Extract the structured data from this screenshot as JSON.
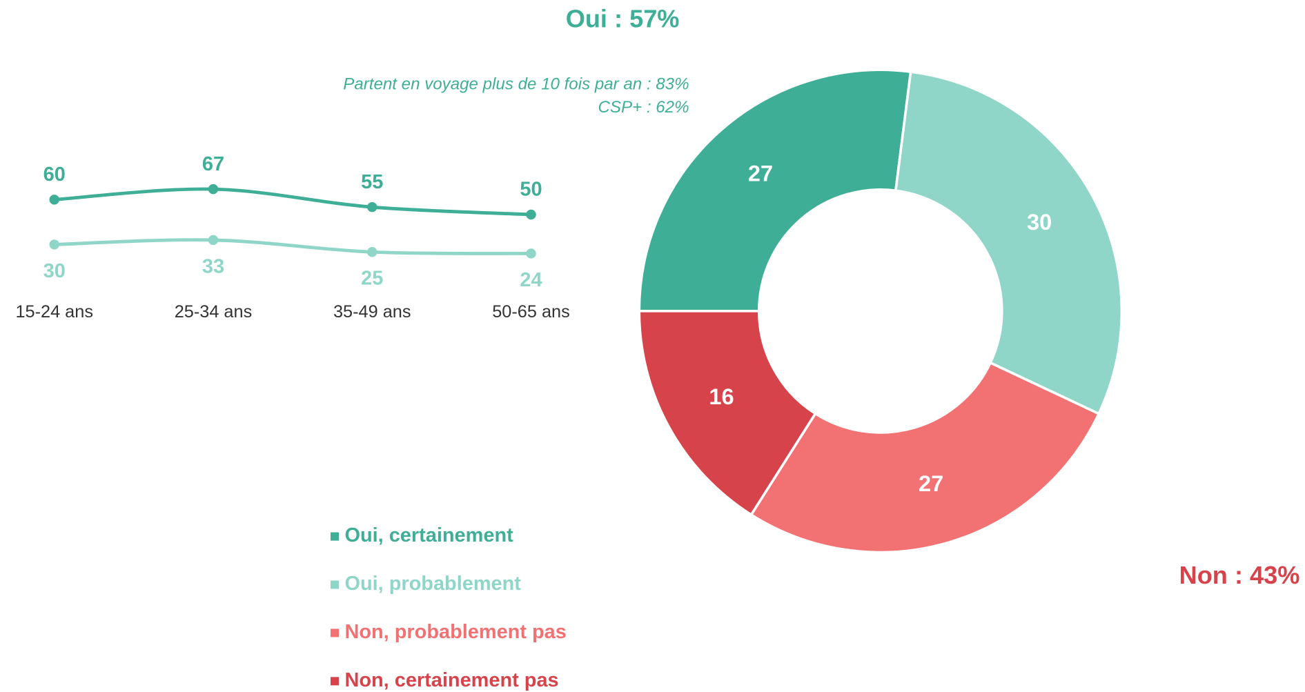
{
  "chart_data": [
    {
      "type": "donut",
      "categories": [
        "Oui, certainement",
        "Oui, probablement",
        "Non, probablement pas",
        "Non, certainement pas"
      ],
      "values": [
        27,
        30,
        27,
        16
      ],
      "colors": [
        "#3fae96",
        "#8fd6c8",
        "#f27274",
        "#d6434a"
      ],
      "annotations": [
        "Oui : 57%",
        "Partent en voyage plus de 10 fois par an : 83%",
        "CSP+ : 62%",
        "Non : 43%"
      ],
      "legend": "bottom-left"
    },
    {
      "type": "line",
      "categories": [
        "15-24 ans",
        "25-34 ans",
        "35-49 ans",
        "50-65 ans"
      ],
      "series": [
        {
          "color": "#3fae96",
          "values": [
            60,
            67,
            55,
            50
          ]
        },
        {
          "color": "#8fd6c8",
          "values": [
            30,
            33,
            25,
            24
          ]
        }
      ]
    }
  ]
}
